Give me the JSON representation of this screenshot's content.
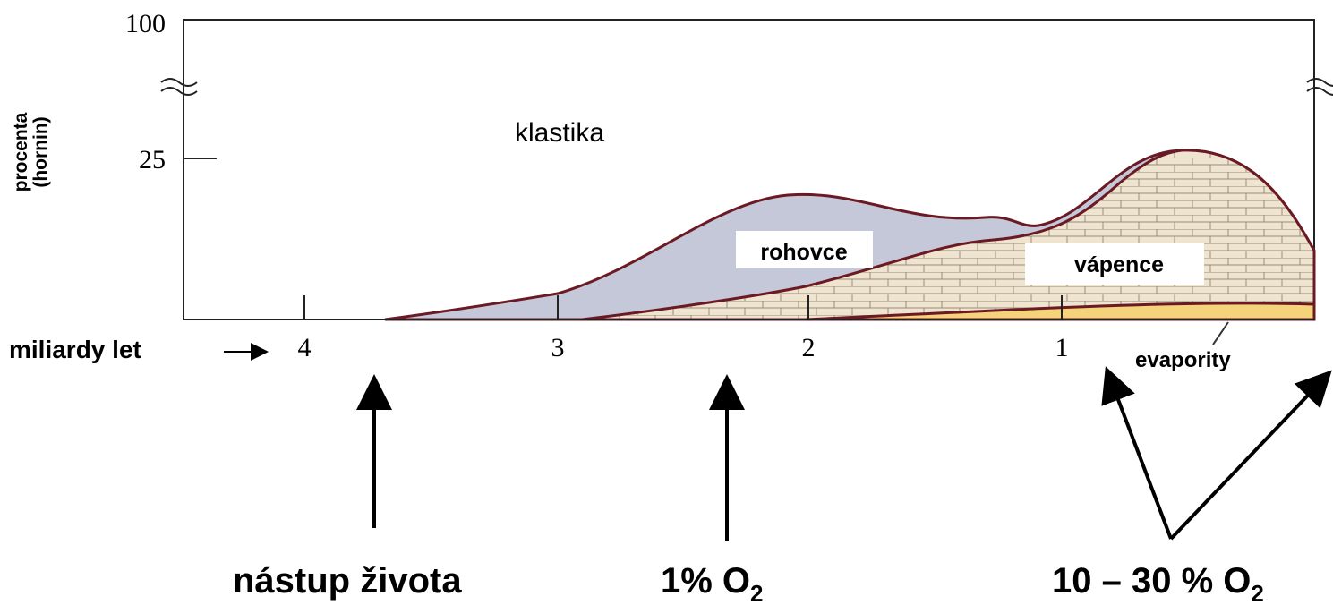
{
  "axis": {
    "y_label_lines": [
      "procenta",
      "(hornin)"
    ],
    "y_ticks": [
      "100",
      "25"
    ],
    "x_ticks": [
      "4",
      "3",
      "2",
      "1"
    ],
    "x_label": "miliardy let"
  },
  "regions": {
    "clastics": "klastika",
    "cherts": "rohovce",
    "limestones": "vápence",
    "evaporites": "evapority"
  },
  "annotations": [
    {
      "text": "nástup života"
    },
    {
      "text": "1% O",
      "sub": "2"
    },
    {
      "text": "10 – 30 % O",
      "sub": "2"
    }
  ]
}
